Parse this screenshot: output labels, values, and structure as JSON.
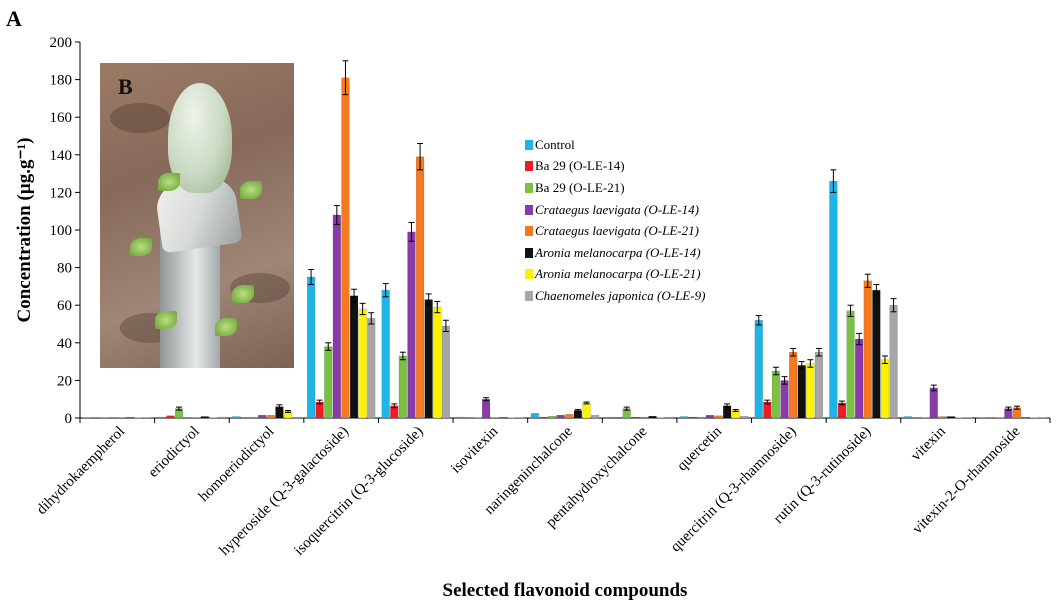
{
  "panel_labels": {
    "main": "A",
    "inset": "B"
  },
  "chart_data": {
    "type": "bar",
    "title": "",
    "xlabel": "Selected flavonoid compounds",
    "ylabel": "Concentration (µg.g⁻¹)",
    "ylim": [
      0,
      200
    ],
    "yticks": [
      0,
      20,
      40,
      60,
      80,
      100,
      120,
      140,
      160,
      180,
      200
    ],
    "grid": false,
    "legend_position": "center",
    "categories": [
      "dihydrokaempherol",
      "eriodictyol",
      "homoeriodictyol",
      "hyperoside (Q-3-galactoside)",
      "isoquercitrin (Q-3-glucoside)",
      "isovitexin",
      "naringeninchalcone",
      "pentahydroxychalcone",
      "quercetin",
      "quercitrin (Q-3-rhamnoside)",
      "rutin (Q-3-rutinoside)",
      "vitexin",
      "vitexin-2-O-rhamnoside"
    ],
    "series": [
      {
        "name": "Control",
        "italic": false,
        "color": "#1fb4e6",
        "values": [
          0.3,
          0.5,
          0.8,
          75,
          68,
          0.5,
          2.5,
          0.5,
          0.8,
          52,
          126,
          0.8,
          0.3
        ],
        "errors": [
          0,
          0,
          0,
          4,
          3.5,
          0,
          0,
          0,
          0,
          2.5,
          6,
          0,
          0
        ]
      },
      {
        "name": "Ba 29 (O-LE-14)",
        "italic": false,
        "color": "#ee1c25",
        "values": [
          0.3,
          1.2,
          0.3,
          8.5,
          6.5,
          0.3,
          0.5,
          0.4,
          0.5,
          8.5,
          8,
          0.3,
          0.3
        ],
        "errors": [
          0,
          0,
          0,
          1,
          1,
          0,
          0,
          0,
          0,
          1,
          1,
          0,
          0
        ]
      },
      {
        "name": "Ba 29 (O-LE-21)",
        "italic": false,
        "color": "#7ac142",
        "values": [
          0.3,
          5,
          0.5,
          38,
          33,
          0.3,
          1,
          5,
          0.5,
          25,
          57,
          0.3,
          0.3
        ],
        "errors": [
          0,
          0.8,
          0,
          2,
          2,
          0,
          0,
          0.8,
          0,
          2,
          3,
          0,
          0
        ]
      },
      {
        "name": "Crataegus laevigata (O-LE-14)",
        "italic": true,
        "color": "#8b3ba7",
        "values": [
          0.3,
          0.3,
          1.5,
          108,
          99,
          10,
          1.5,
          0.5,
          1.5,
          20,
          42,
          16,
          5
        ],
        "errors": [
          0,
          0,
          0,
          5,
          5,
          0.8,
          0,
          0,
          0,
          2,
          3,
          1.5,
          0.8
        ]
      },
      {
        "name": "Crataegus laevigata (O-LE-21)",
        "italic": true,
        "color": "#f47920",
        "values": [
          0.3,
          0.3,
          1.5,
          181,
          139,
          0.3,
          2,
          0.5,
          1.2,
          35,
          73,
          0.8,
          5.5
        ],
        "errors": [
          0,
          0,
          0,
          9,
          7,
          0,
          0,
          0,
          0,
          2,
          3.5,
          0,
          0.8
        ]
      },
      {
        "name": "Aronia melanocarpa (O-LE-14)",
        "italic": true,
        "color": "#111111",
        "values": [
          0.3,
          0.8,
          6,
          65,
          63,
          0.3,
          4,
          1,
          6.5,
          28,
          68,
          0.8,
          0.3
        ],
        "errors": [
          0,
          0,
          1,
          3.5,
          3,
          0,
          0.5,
          0,
          1,
          2,
          3,
          0,
          0
        ]
      },
      {
        "name": "Aronia melanocarpa (O-LE-21)",
        "italic": true,
        "color": "#fff200",
        "values": [
          0.3,
          0.3,
          3.5,
          58,
          59,
          0.3,
          8,
          0.5,
          4,
          29,
          31,
          0.3,
          0.3
        ],
        "errors": [
          0,
          0,
          0.5,
          3,
          3,
          0,
          0.5,
          0,
          0.5,
          2,
          2,
          0,
          0
        ]
      },
      {
        "name": "Chaenomeles japonica (O-LE-9)",
        "italic": true,
        "color": "#a6a6a6",
        "values": [
          0.3,
          0.5,
          0.5,
          53,
          49,
          0.3,
          1.5,
          0.5,
          1,
          35,
          60,
          0.3,
          0.3
        ],
        "errors": [
          0,
          0,
          0,
          3,
          3,
          0,
          0,
          0,
          0,
          2,
          3.5,
          0,
          0
        ]
      }
    ]
  }
}
